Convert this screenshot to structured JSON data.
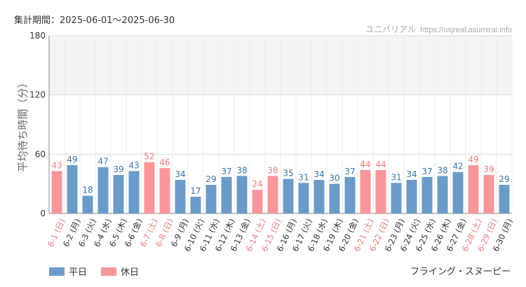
{
  "period_label": "集計期間：2025-06-01〜2025-06-30",
  "attribution": {
    "name": "ユニバリアル",
    "site": "https://usjreal.asumirai.info"
  },
  "ride_name": "フライング・スヌーピー",
  "legend": {
    "weekday": "平日",
    "holiday": "休日"
  },
  "colors": {
    "weekday": "#6b9bc8",
    "holiday": "#f7979b",
    "weekday_text": "#3a73a8",
    "holiday_text": "#f07a80",
    "band": "#f4f4f4",
    "grid": "#dddddd"
  },
  "chart_data": {
    "type": "bar",
    "title": "",
    "xlabel": "",
    "ylabel": "平均待ち時間（分）",
    "ylim": [
      0,
      180
    ],
    "yticks": [
      0,
      60,
      120,
      180
    ],
    "bands": [
      [
        120,
        180
      ]
    ],
    "grid": true,
    "legend_position": "bottom-left",
    "categories": [
      "6-1 (日)",
      "6-2 (月)",
      "6-3 (火)",
      "6-4 (水)",
      "6-5 (木)",
      "6-6 (金)",
      "6-7 (土)",
      "6-8 (日)",
      "6-9 (月)",
      "6-10 (火)",
      "6-11 (水)",
      "6-12 (木)",
      "6-13 (金)",
      "6-14 (土)",
      "6-15 (日)",
      "6-16 (月)",
      "6-17 (火)",
      "6-18 (水)",
      "6-19 (木)",
      "6-20 (金)",
      "6-21 (土)",
      "6-22 (日)",
      "6-23 (月)",
      "6-24 (火)",
      "6-25 (水)",
      "6-26 (木)",
      "6-27 (金)",
      "6-28 (土)",
      "6-29 (日)",
      "6-30 (月)"
    ],
    "values": [
      43,
      49,
      18,
      47,
      39,
      43,
      52,
      46,
      34,
      17,
      29,
      37,
      38,
      24,
      38,
      35,
      31,
      34,
      30,
      37,
      44,
      44,
      31,
      34,
      37,
      38,
      42,
      49,
      39,
      29
    ],
    "holiday": [
      true,
      false,
      false,
      false,
      false,
      false,
      true,
      true,
      false,
      false,
      false,
      false,
      false,
      true,
      true,
      false,
      false,
      false,
      false,
      false,
      true,
      true,
      false,
      false,
      false,
      false,
      false,
      true,
      true,
      false
    ]
  }
}
